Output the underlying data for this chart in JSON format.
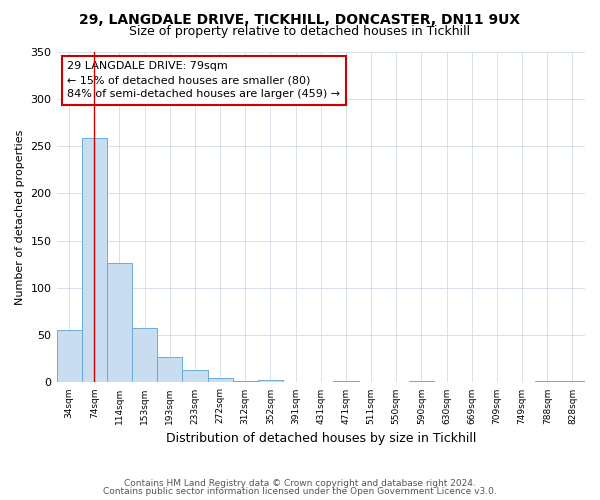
{
  "title": "29, LANGDALE DRIVE, TICKHILL, DONCASTER, DN11 9UX",
  "subtitle": "Size of property relative to detached houses in Tickhill",
  "xlabel": "Distribution of detached houses by size in Tickhill",
  "ylabel": "Number of detached properties",
  "bar_labels": [
    "34sqm",
    "74sqm",
    "114sqm",
    "153sqm",
    "193sqm",
    "233sqm",
    "272sqm",
    "312sqm",
    "352sqm",
    "391sqm",
    "431sqm",
    "471sqm",
    "511sqm",
    "550sqm",
    "590sqm",
    "630sqm",
    "669sqm",
    "709sqm",
    "749sqm",
    "788sqm",
    "828sqm"
  ],
  "bar_values": [
    55,
    258,
    126,
    58,
    27,
    13,
    5,
    2,
    3,
    0,
    0,
    2,
    0,
    0,
    1,
    0,
    0,
    0,
    0,
    2,
    1
  ],
  "bar_color": "#c9ddf0",
  "bar_edge_color": "#6aabd6",
  "vline_x": 1.0,
  "vline_color": "#cc0000",
  "ylim": [
    0,
    350
  ],
  "yticks": [
    0,
    50,
    100,
    150,
    200,
    250,
    300,
    350
  ],
  "annotation_text": "29 LANGDALE DRIVE: 79sqm\n← 15% of detached houses are smaller (80)\n84% of semi-detached houses are larger (459) →",
  "annotation_box_color": "#ffffff",
  "annotation_box_edge": "#cc0000",
  "footer1": "Contains HM Land Registry data © Crown copyright and database right 2024.",
  "footer2": "Contains public sector information licensed under the Open Government Licence v3.0.",
  "bg_color": "#ffffff",
  "grid_color": "#d0dce8"
}
